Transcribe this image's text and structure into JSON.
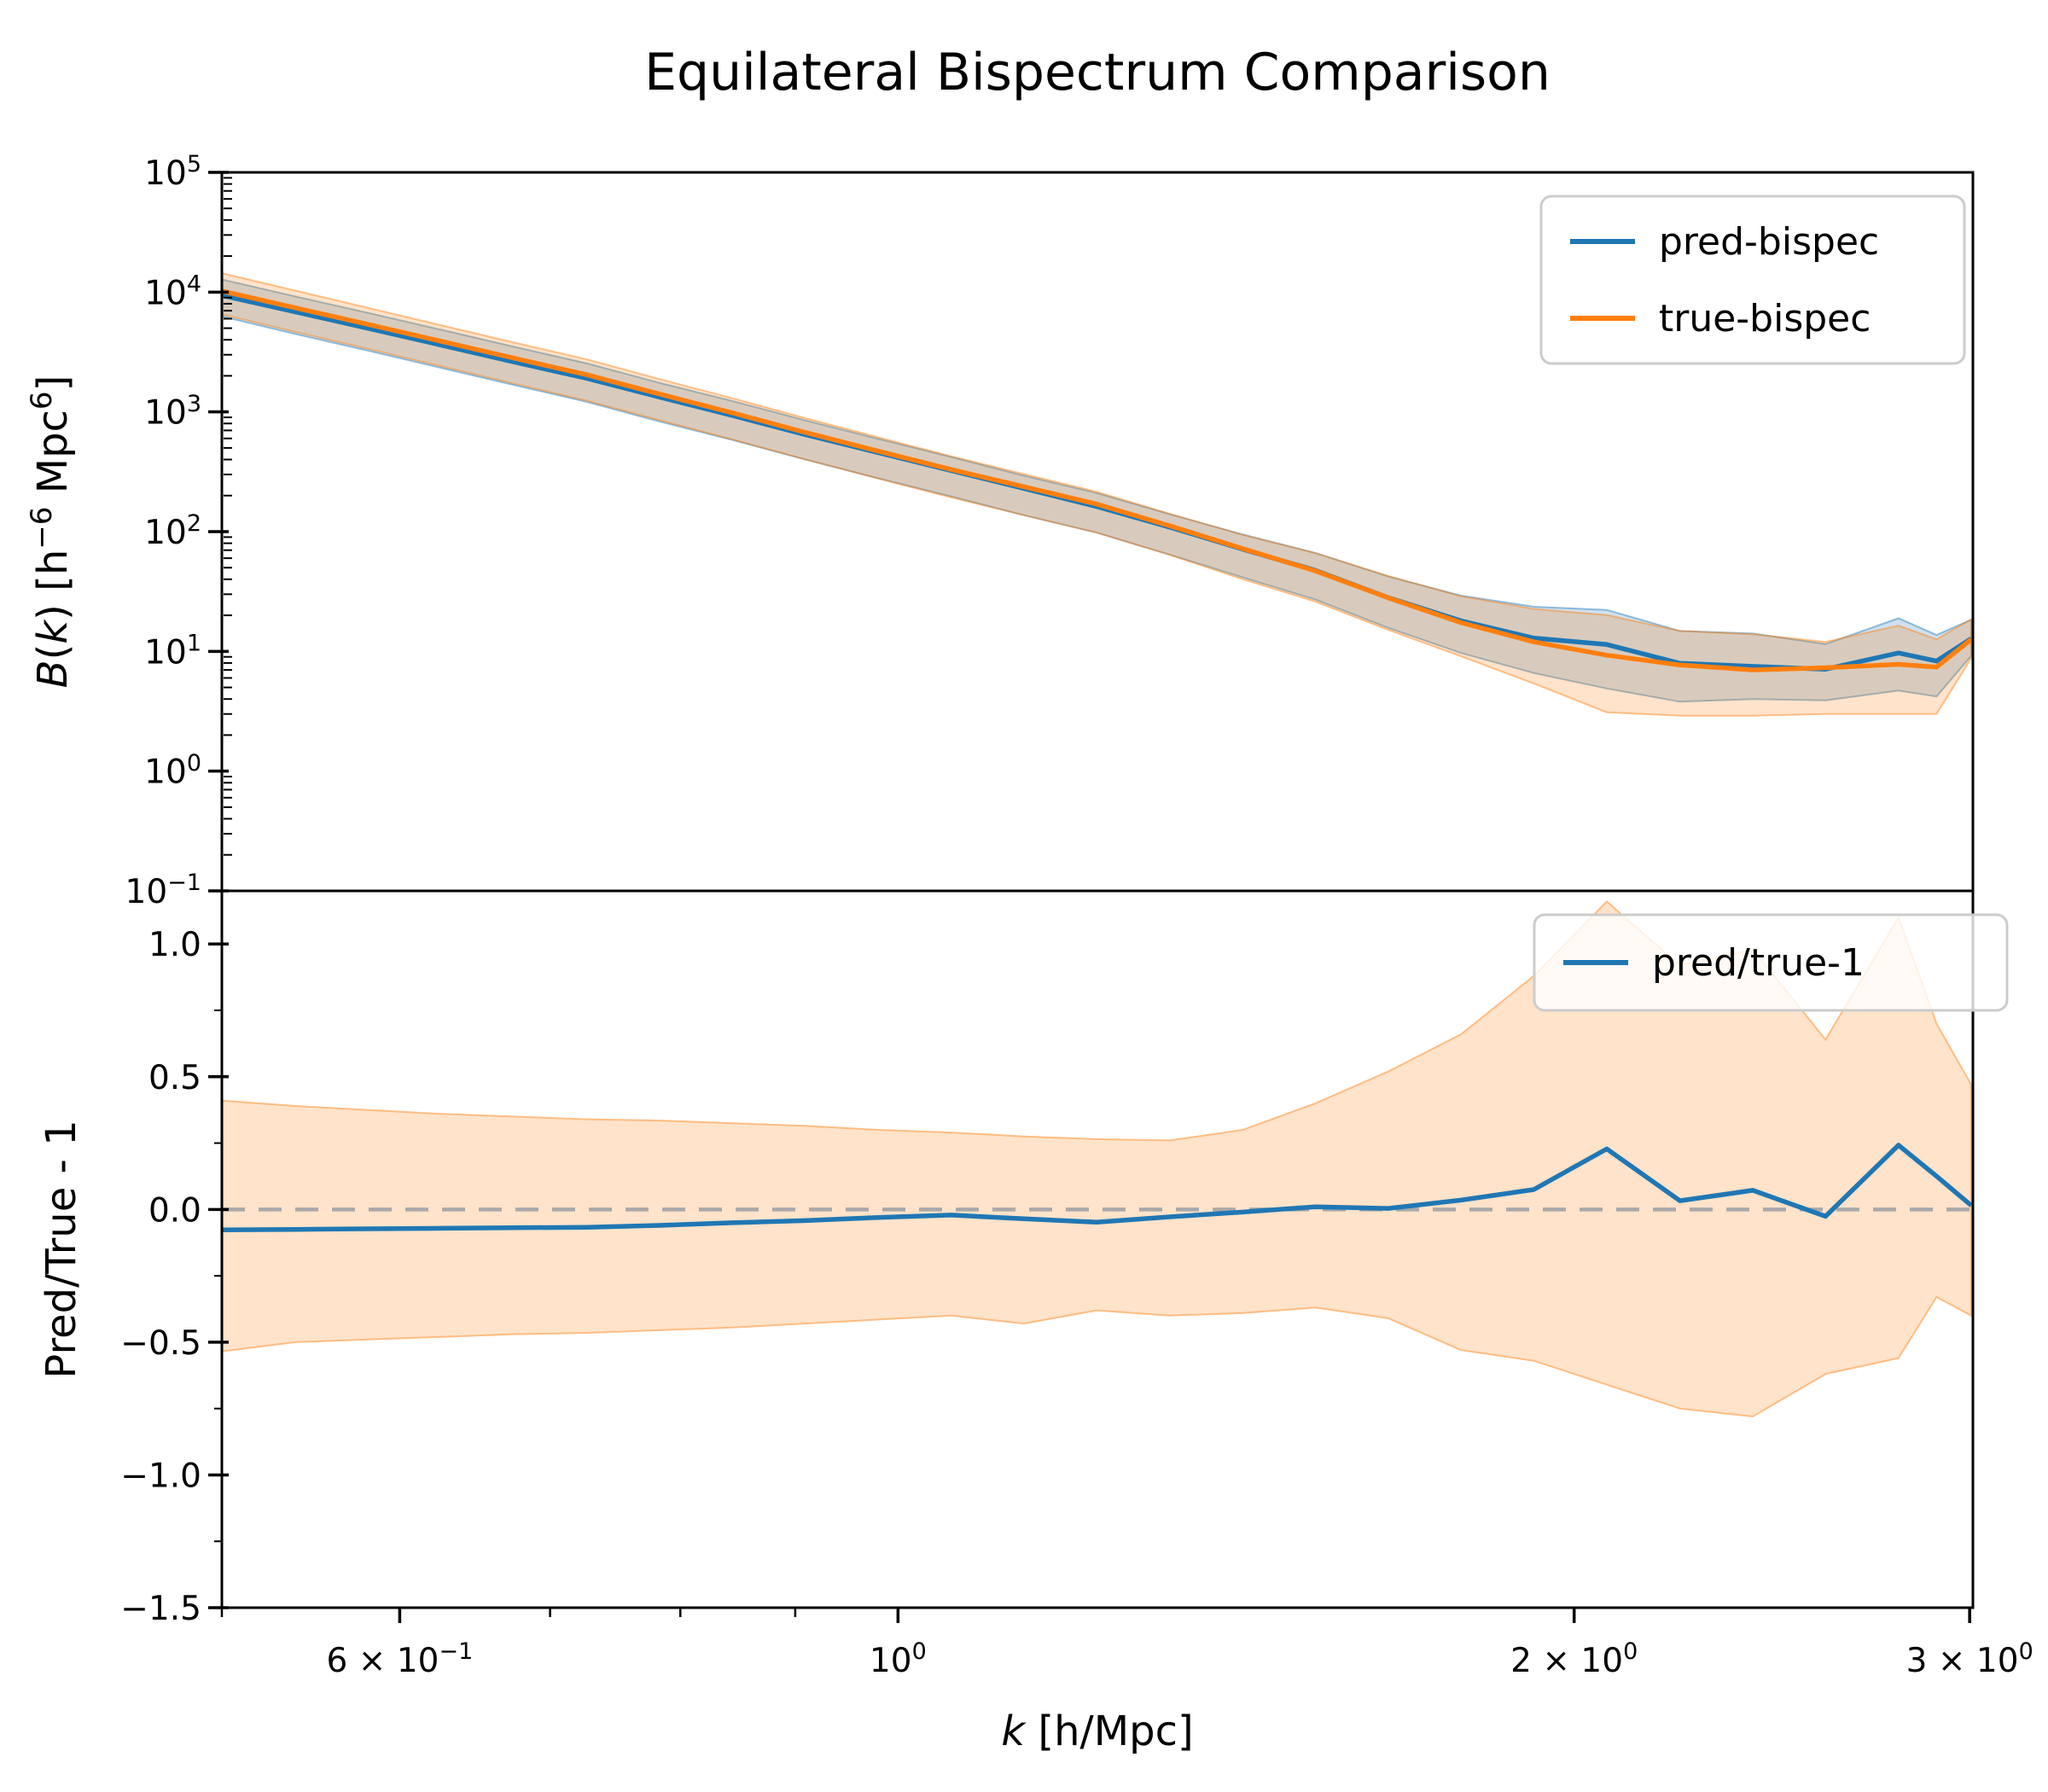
{
  "title": "Equilateral Bispectrum Comparison",
  "colors": {
    "blue": "#1f77b4",
    "orange": "#ff7f0e",
    "blue_band_fill": "rgba(31,119,180,0.22)",
    "orange_band_fill": "rgba(255,127,14,0.22)",
    "blue_band_edge": "rgba(31,119,180,0.45)",
    "orange_band_edge": "rgba(255,127,14,0.45)",
    "dashed_line": "#a9a9a9",
    "legend_border": "#cccccc",
    "legend_fill": "rgba(255,255,255,0.8)",
    "axis": "#000000"
  },
  "xaxis": {
    "label_segments": [
      {
        "t": "k",
        "i": 1
      },
      {
        "t": " [h/Mpc]"
      }
    ],
    "ticks": [
      {
        "pre": "6 × ",
        "base": "10",
        "sup": "−1",
        "v": 0.6
      },
      {
        "pre": "",
        "base": "10",
        "sup": "0",
        "v": 1.0
      },
      {
        "pre": "2 × ",
        "base": "10",
        "sup": "0",
        "v": 2.0
      },
      {
        "pre": "3 × ",
        "base": "10",
        "sup": "0",
        "v": 3.0
      }
    ],
    "minors": [
      0.5,
      0.7,
      0.8,
      0.9
    ]
  },
  "top_panel": {
    "ylabel_segments": [
      {
        "t": "B",
        "i": 1
      },
      {
        "t": "("
      },
      {
        "t": "k",
        "i": 1
      },
      {
        "t": ") [h"
      },
      {
        "t": "−6",
        "s": 1
      },
      {
        "t": " Mpc"
      },
      {
        "t": "6",
        "s": 1
      },
      {
        "t": "]"
      }
    ],
    "yticks": [
      {
        "base": "10",
        "sup": "5",
        "v": 100000
      },
      {
        "base": "10",
        "sup": "4",
        "v": 10000
      },
      {
        "base": "10",
        "sup": "3",
        "v": 1000
      },
      {
        "base": "10",
        "sup": "2",
        "v": 100
      },
      {
        "base": "10",
        "sup": "1",
        "v": 10
      },
      {
        "base": "10",
        "sup": "0",
        "v": 1
      },
      {
        "base": "10",
        "sup": "−1",
        "v": 0.1
      }
    ],
    "legend": [
      {
        "label": "pred-bispec",
        "color": "#1f77b4"
      },
      {
        "label": "true-bispec",
        "color": "#ff7f0e"
      }
    ]
  },
  "bottom_panel": {
    "ylabel": "Pred/True - 1",
    "yticks": [
      {
        "label": "1.0",
        "v": 1.0
      },
      {
        "label": "0.5",
        "v": 0.5
      },
      {
        "label": "0.0",
        "v": 0.0
      },
      {
        "label": "−0.5",
        "v": -0.5
      },
      {
        "label": "−1.0",
        "v": -1.0
      },
      {
        "label": "−1.5",
        "v": -1.5
      }
    ],
    "minor_step": 0.25,
    "legend": [
      {
        "label": "pred/true-1",
        "color": "#1f77b4"
      }
    ],
    "zero_line": 0.0
  },
  "chart_data": {
    "type": "line",
    "title": "Equilateral Bispectrum Comparison",
    "xlabel": "k [h/Mpc]",
    "xscale": "log",
    "xlim": [
      0.5,
      3.01
    ],
    "x": [
      0.5,
      0.539,
      0.581,
      0.626,
      0.674,
      0.727,
      0.783,
      0.844,
      0.909,
      0.98,
      1.056,
      1.138,
      1.226,
      1.321,
      1.424,
      1.534,
      1.653,
      1.781,
      1.919,
      2.068,
      2.229,
      2.402,
      2.588,
      2.789,
      2.9,
      3.005
    ],
    "panels": [
      {
        "ylabel": "B(k) [h^-6 Mpc^6]",
        "yscale": "log",
        "ylim": [
          0.1,
          100000
        ],
        "series": [
          {
            "name": "pred-bispec",
            "values": [
              9390,
              6850,
              4980,
              3610,
              2620,
              1900,
              1330,
              931,
              647,
              456,
              323,
              229,
              162,
              109,
              71.3,
              47.5,
              28.1,
              18,
              12.9,
              11.4,
              7.95,
              7.5,
              7.1,
              9.7,
              8.3,
              12.8
            ],
            "band_lo": [
              6280,
              4470,
              3240,
              2330,
              1680,
              1210,
              832,
              582,
              401,
              279,
              197,
              137,
              98,
              64.3,
              41.5,
              27.1,
              15.7,
              9.7,
              6.6,
              4.9,
              3.8,
              4,
              3.9,
              4.7,
              4.2,
              9.2
            ],
            "band_hi": [
              12760,
              9220,
              6700,
              4850,
              3510,
              2540,
              1750,
              1230,
              851,
              595,
              420,
              293,
              210,
              140,
              94.5,
              66.5,
              42.2,
              29.2,
              23.6,
              22.2,
              14.8,
              14.1,
              11.5,
              18.9,
              13.7,
              18.4
            ]
          },
          {
            "name": "true-bispec",
            "values": [
              10200,
              7400,
              5370,
              3890,
              2820,
              2040,
              1410,
              980,
              675,
              470,
              330,
              237,
              170,
              112,
              72,
              47,
              28,
              17.4,
              12,
              9.3,
              7.7,
              7,
              7.3,
              7.8,
              7.4,
              12.6
            ],
            "band_lo": [
              6530,
              4660,
              3360,
              2410,
              1730,
              1240,
              853,
              588,
              402,
              277,
              193,
              137,
              98,
              64,
              40,
              26,
              15.1,
              9.1,
              5.4,
              3.1,
              2.9,
              2.9,
              3,
              3,
              3,
              8.8
            ],
            "band_hi": [
              14400,
              10300,
              7380,
              5290,
              3810,
              2740,
              1880,
              1300,
              888,
              613,
              426,
              302,
              215,
              141,
              94,
              66,
              42.6,
              28.9,
              22.6,
              20.1,
              14.8,
              13.9,
              12,
              16.4,
              12.6,
              18.5
            ]
          }
        ]
      },
      {
        "ylabel": "Pred/True - 1",
        "yscale": "linear",
        "ylim": [
          -1.5,
          1.2
        ],
        "zero_line": 0.0,
        "series": [
          {
            "name": "pred/true-1",
            "values": [
              -0.077,
              -0.075,
              -0.073,
              -0.071,
              -0.069,
              -0.067,
              -0.06,
              -0.05,
              -0.042,
              -0.03,
              -0.021,
              -0.035,
              -0.048,
              -0.028,
              -0.01,
              0.01,
              0.004,
              0.035,
              0.075,
              0.228,
              0.033,
              0.072,
              -0.026,
              0.242,
              0.125,
              0.015
            ],
            "band_lo": [
              -0.535,
              -0.5,
              -0.49,
              -0.48,
              -0.47,
              -0.465,
              -0.455,
              -0.445,
              -0.43,
              -0.415,
              -0.4,
              -0.43,
              -0.38,
              -0.4,
              -0.39,
              -0.37,
              -0.41,
              -0.53,
              -0.57,
              -0.66,
              -0.75,
              -0.78,
              -0.62,
              -0.56,
              -0.33,
              -0.4
            ],
            "band_hi": [
              0.41,
              0.39,
              0.375,
              0.36,
              0.35,
              0.34,
              0.335,
              0.325,
              0.315,
              0.3,
              0.29,
              0.275,
              0.265,
              0.26,
              0.3,
              0.4,
              0.52,
              0.66,
              0.88,
              1.16,
              0.92,
              0.98,
              0.64,
              1.1,
              0.7,
              0.47
            ]
          }
        ]
      }
    ]
  }
}
